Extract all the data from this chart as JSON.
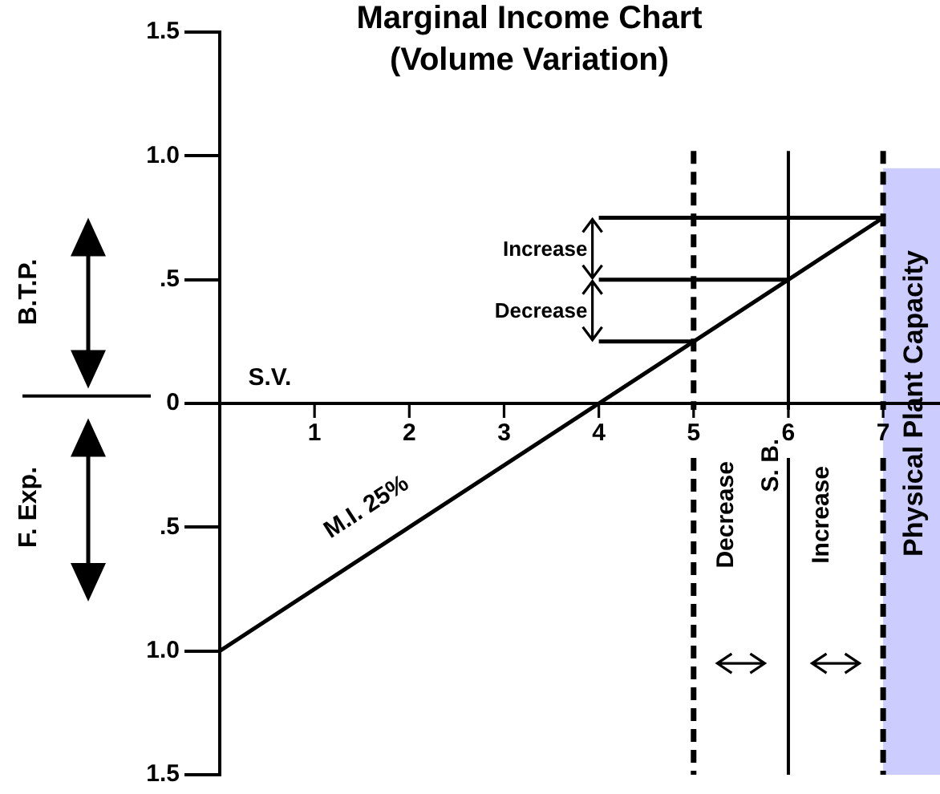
{
  "chart_data": {
    "type": "line",
    "title": "Marginal Income Chart\n(Volume Variation)",
    "series": [
      {
        "color": "#000000",
        "x": [
          0,
          4,
          7
        ],
        "values": [
          -1,
          0,
          0.75
        ]
      },
      {
        "color": "#000000",
        "x": [
          4,
          7
        ],
        "values": [
          0.75,
          0.75
        ]
      },
      {
        "color": "#000000",
        "x": [
          4,
          6
        ],
        "values": [
          0.5,
          0.5
        ]
      },
      {
        "color": "#000000",
        "x": [
          4,
          5
        ],
        "values": [
          0.25,
          0.25
        ]
      }
    ],
    "xlim": [
      0,
      7.6
    ],
    "xticks": [
      1,
      2,
      3,
      4,
      5,
      6,
      7
    ],
    "ylim": [
      -1.5,
      1.5
    ],
    "yticks": [
      {
        "value": -1.5,
        "label": "1.5"
      },
      {
        "value": -1,
        "label": "1.0"
      },
      {
        "value": -0.5,
        "label": ".5"
      },
      0,
      {
        "value": 0.5,
        "label": ".5"
      },
      {
        "value": 1,
        "label": "1.0"
      },
      1.5
    ],
    "ref_lines": [
      {
        "axis": "x",
        "value": 5,
        "line_style": "dashed",
        "color": "#000000"
      },
      {
        "axis": "x",
        "value": 6,
        "label": "S. B.",
        "line_style": "solid",
        "color": "#000000"
      },
      {
        "axis": "x",
        "value": 7,
        "line_style": "dashed",
        "color": "#000000"
      }
    ],
    "bands": [
      {
        "axis": "x",
        "from": 7,
        "to": 7.6,
        "label": "Physical Plant Capacity",
        "color": "#ccccff"
      }
    ],
    "annotations": [
      "B.T.P.",
      "F. Exp.",
      "S.V.",
      "M.I. 25%",
      "Increase",
      "Decrease",
      "Decrease",
      "Increase"
    ],
    "grid": false,
    "legend": false,
    "marker": "none",
    "line_style": "solid"
  }
}
